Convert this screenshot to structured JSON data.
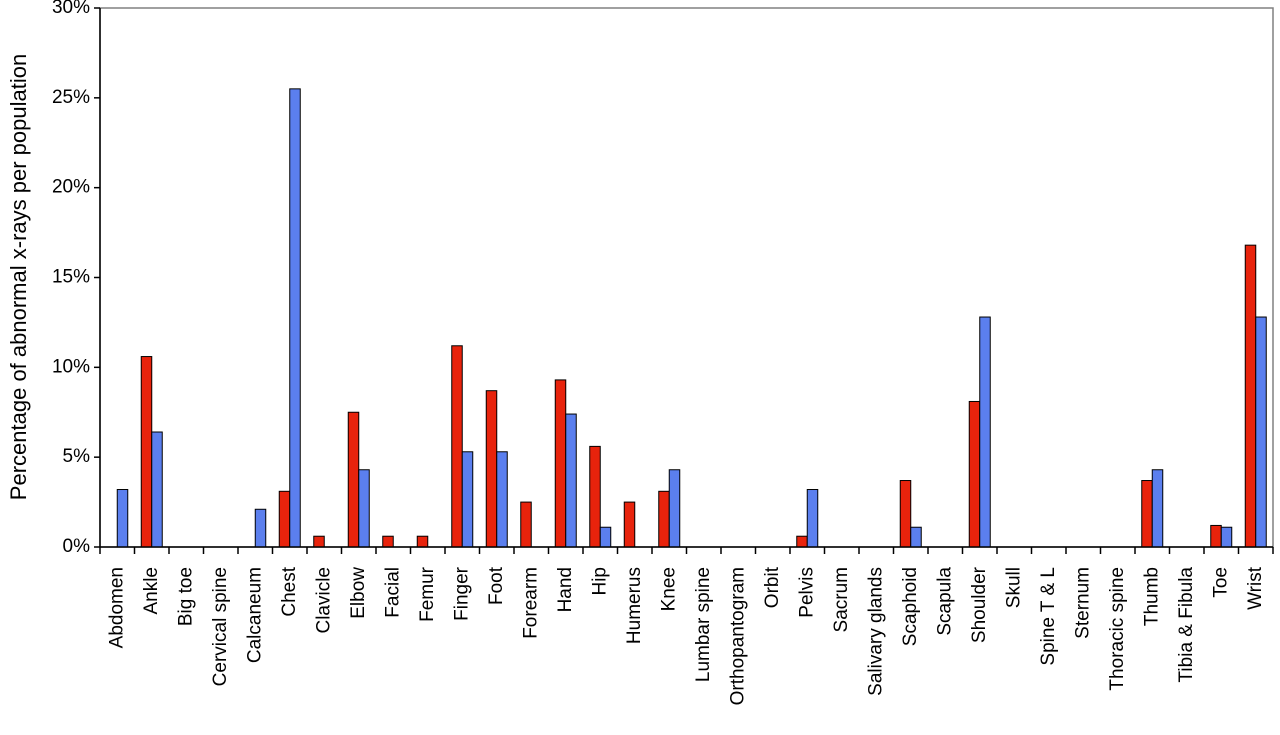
{
  "chart_data": {
    "type": "bar",
    "title": "",
    "xlabel": "",
    "ylabel": "Percentage of abnormal x-rays per population",
    "ylim": [
      0,
      30
    ],
    "yticks": [
      "0%",
      "5%",
      "10%",
      "15%",
      "20%",
      "25%",
      "30%"
    ],
    "ytick_values": [
      0,
      5,
      10,
      15,
      20,
      25,
      30
    ],
    "grid": false,
    "legend": null,
    "categories": [
      "Abdomen",
      "Ankle",
      "Big toe",
      "Cervical spine",
      "Calcaneum",
      "Chest",
      "Clavicle",
      "Elbow",
      "Facial",
      "Femur",
      "Finger",
      "Foot",
      "Forearm",
      "Hand",
      "Hip",
      "Humerus",
      "Knee",
      "Lumbar spine",
      "Orthopantogram",
      "Orbit",
      "Pelvis",
      "Sacrum",
      "Salivary glands",
      "Scaphoid",
      "Scapula",
      "Shoulder",
      "Skull",
      "Spine T & L",
      "Sternum",
      "Thoracic spine",
      "Thumb",
      "Tibia & Fibula",
      "Toe",
      "Wrist"
    ],
    "series": [
      {
        "color": "#e8230c",
        "values": [
          0,
          10.6,
          0,
          0,
          0,
          3.1,
          0.6,
          7.5,
          0.6,
          0.6,
          11.2,
          8.7,
          2.5,
          9.3,
          5.6,
          2.5,
          3.1,
          0,
          0,
          0,
          0.6,
          0,
          0,
          3.7,
          0,
          8.1,
          0,
          0,
          0,
          0,
          3.7,
          0,
          1.2,
          16.8
        ]
      },
      {
        "color": "#5b7fee",
        "values": [
          3.2,
          6.4,
          0,
          0,
          2.1,
          25.5,
          0,
          4.3,
          0,
          0,
          5.3,
          5.3,
          0,
          7.4,
          1.1,
          0,
          4.3,
          0,
          0,
          0,
          3.2,
          0,
          0,
          1.1,
          0,
          12.8,
          0,
          0,
          0,
          0,
          4.3,
          0,
          1.1,
          12.8
        ]
      }
    ]
  }
}
